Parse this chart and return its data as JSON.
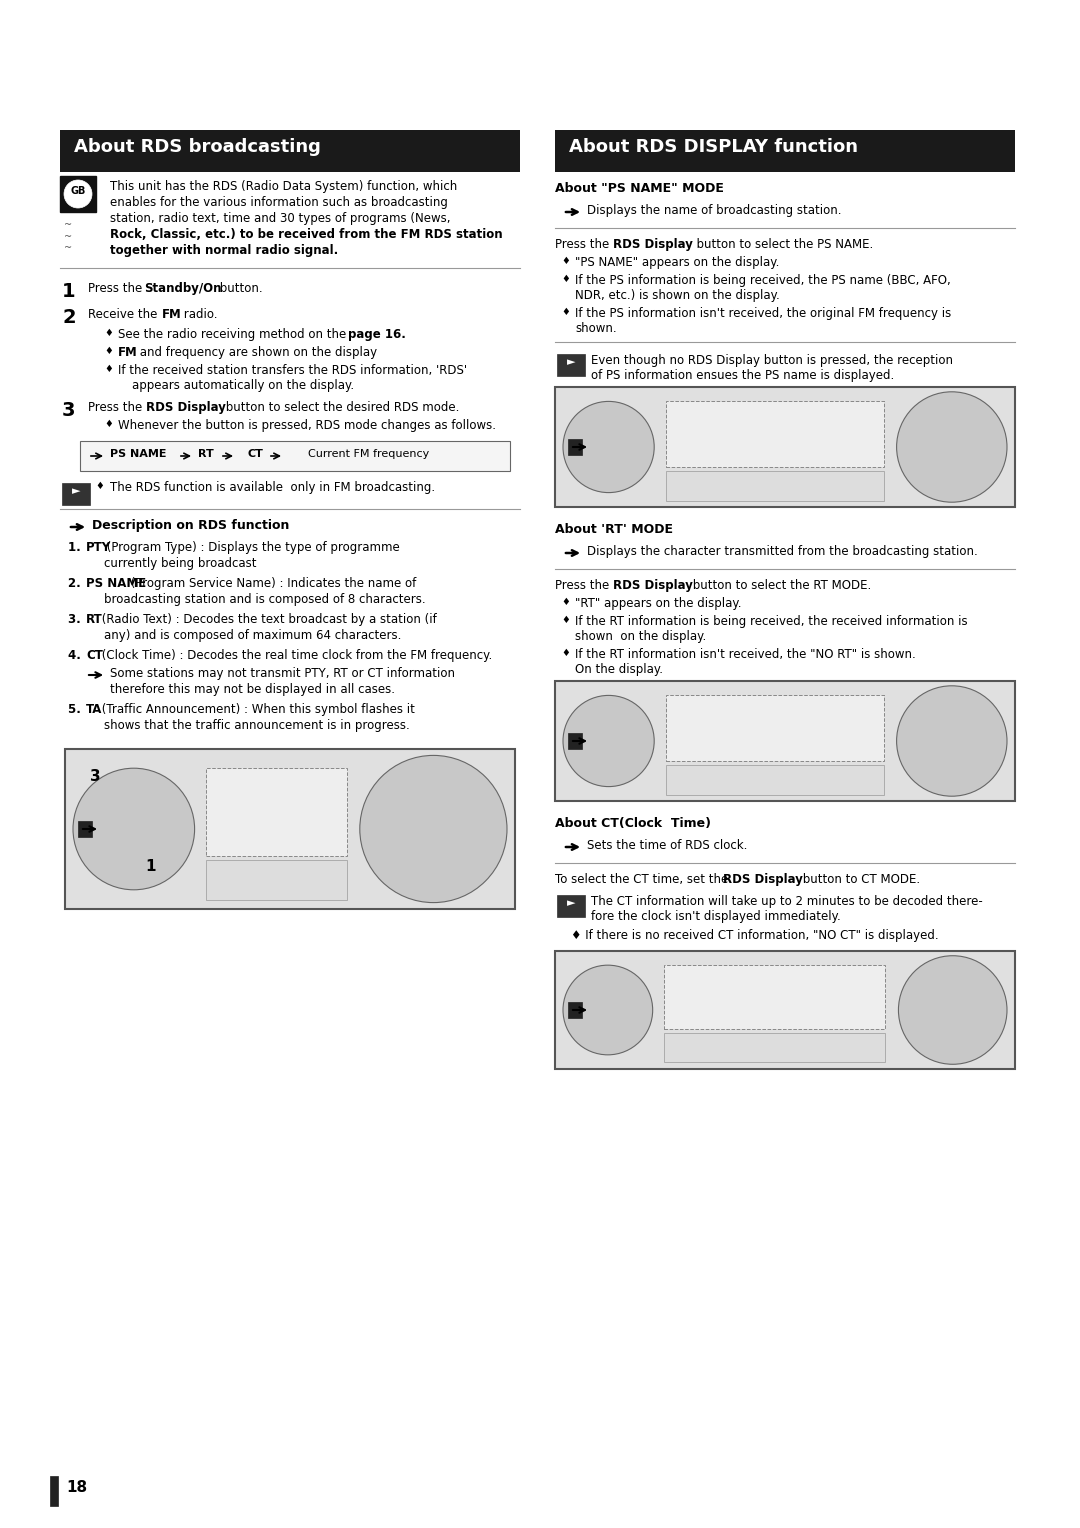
{
  "page_bg": "#ffffff",
  "page_number": "18",
  "left_title": "About RDS broadcasting",
  "right_title": "About RDS DISPLAY function",
  "title_bg": "#1a1a1a",
  "title_fg": "#ffffff",
  "intro_text_lines": [
    "This unit has the RDS (Radio Data System) function, which",
    "enables for the various information such as broadcasting",
    "station, radio text, time and 30 types of programs (News,",
    "Rock, Classic, etc.) to be received from the FM RDS station",
    "together with normal radio signal."
  ],
  "note_rds": "The RDS function is available  only in FM broadcasting.",
  "desc_title": "Description on RDS function",
  "ps_name_title": "About \"PS NAME\" MODE",
  "ps_name_arrow": "Displays the name of broadcasting station.",
  "ps_press": "Press the RDS Display  button to select the PS NAME.",
  "ps_bullets": [
    "\"PS NAME\" appears on the display.",
    "If the PS information is being received, the PS name (BBC, AFO,|NDR, etc.) is shown on the display.",
    "If the PS information isn't received, the original FM frequency is|shown."
  ],
  "ps_note": "Even though no RDS Display button is pressed, the reception|of PS information ensues the PS name is displayed.",
  "rt_title": "About 'RT' MODE",
  "rt_arrow": "Displays the character transmitted from the broadcasting station.",
  "rt_press": "Press the RDS Display button to select the RT MODE.",
  "rt_bullets": [
    "\"RT\" appears on the display.",
    "If the RT information is being received, the received information is|shown  on the display.",
    "If the RT information isn't received, the \"NO RT\" is shown.|On the display."
  ],
  "ct_title": "About CT(Clock  Time)",
  "ct_arrow": "Sets the time of RDS clock.",
  "ct_press": "To select the CT time, set the RDS Display button to CT MODE.",
  "ct_note1_lines": [
    "The CT information will take up to 2 minutes to be decoded there-",
    "fore the clock isn't displayed immediately."
  ],
  "ct_note2": "If there is no received CT information, \"NO CT\" is displayed."
}
